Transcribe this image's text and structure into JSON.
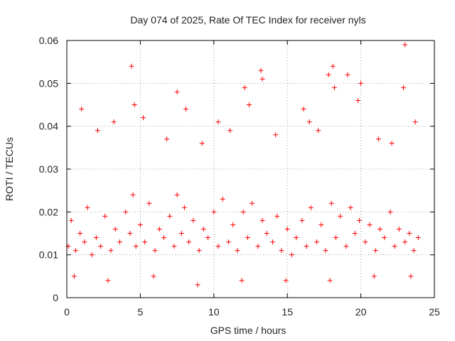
{
  "chart_data": {
    "type": "scatter",
    "title": "Day 074 of 2025, Rate Of TEC Index for receiver nyls",
    "xlabel": "GPS time / hours",
    "ylabel": "ROTI / TECUs",
    "xlim": [
      0,
      25
    ],
    "ylim": [
      0,
      0.06
    ],
    "xticks": [
      "0",
      "5",
      "10",
      "15",
      "20",
      "25"
    ],
    "yticks": [
      "0",
      "0.01",
      "0.02",
      "0.03",
      "0.04",
      "0.05",
      "0.06"
    ],
    "grid": true,
    "marker": "+",
    "colors": {
      "points": "#ff0000",
      "grid": "#a0a0a0",
      "axes": "#000000"
    },
    "x": [
      0.1,
      0.3,
      0.6,
      0.9,
      1.2,
      1.4,
      1.7,
      2.0,
      2.3,
      2.6,
      3.0,
      3.3,
      3.6,
      4.0,
      4.3,
      4.5,
      4.7,
      5.0,
      5.3,
      5.6,
      6.0,
      6.3,
      6.6,
      7.0,
      7.3,
      7.5,
      7.8,
      8.0,
      8.3,
      8.6,
      9.0,
      9.3,
      9.6,
      10.0,
      10.3,
      10.6,
      11.0,
      11.3,
      11.6,
      12.0,
      12.3,
      12.6,
      13.0,
      13.3,
      13.6,
      14.0,
      14.3,
      14.6,
      15.0,
      15.3,
      15.6,
      16.0,
      16.3,
      16.6,
      17.0,
      17.3,
      17.6,
      18.0,
      18.3,
      18.6,
      19.0,
      19.3,
      19.6,
      19.9,
      20.3,
      20.6,
      21.0,
      21.3,
      21.6,
      22.0,
      22.3,
      22.6,
      23.0,
      23.3,
      23.6,
      23.9,
      1.0,
      2.1,
      3.2,
      4.4,
      4.6,
      5.2,
      6.8,
      7.5,
      8.1,
      9.2,
      10.3,
      11.1,
      12.1,
      12.4,
      13.2,
      13.3,
      14.2,
      16.1,
      16.5,
      17.1,
      17.8,
      18.1,
      18.2,
      19.1,
      19.8,
      20.0,
      21.2,
      22.1,
      22.9,
      23.0,
      23.7,
      0.5,
      2.8,
      5.9,
      8.9,
      11.9,
      14.9,
      17.9,
      20.9,
      23.4
    ],
    "y": [
      0.012,
      0.018,
      0.011,
      0.015,
      0.013,
      0.021,
      0.01,
      0.014,
      0.012,
      0.019,
      0.011,
      0.016,
      0.013,
      0.02,
      0.015,
      0.024,
      0.012,
      0.017,
      0.013,
      0.022,
      0.011,
      0.016,
      0.014,
      0.019,
      0.012,
      0.024,
      0.015,
      0.021,
      0.013,
      0.018,
      0.011,
      0.016,
      0.014,
      0.02,
      0.012,
      0.023,
      0.013,
      0.017,
      0.011,
      0.02,
      0.014,
      0.022,
      0.012,
      0.018,
      0.015,
      0.013,
      0.019,
      0.011,
      0.016,
      0.01,
      0.014,
      0.018,
      0.012,
      0.021,
      0.013,
      0.017,
      0.011,
      0.022,
      0.014,
      0.019,
      0.012,
      0.021,
      0.015,
      0.018,
      0.013,
      0.017,
      0.011,
      0.016,
      0.014,
      0.02,
      0.012,
      0.016,
      0.013,
      0.015,
      0.011,
      0.014,
      0.044,
      0.039,
      0.041,
      0.054,
      0.045,
      0.042,
      0.037,
      0.048,
      0.044,
      0.036,
      0.041,
      0.039,
      0.049,
      0.045,
      0.053,
      0.051,
      0.038,
      0.044,
      0.041,
      0.039,
      0.052,
      0.054,
      0.049,
      0.052,
      0.046,
      0.05,
      0.037,
      0.036,
      0.049,
      0.059,
      0.041,
      0.005,
      0.004,
      0.005,
      0.003,
      0.004,
      0.004,
      0.004,
      0.005,
      0.005
    ]
  }
}
